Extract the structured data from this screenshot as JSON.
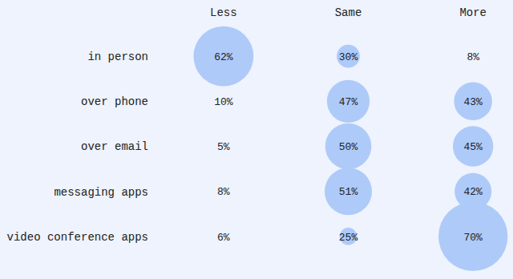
{
  "chart_data": {
    "type": "bubble",
    "categories": [
      "Less",
      "Same",
      "More"
    ],
    "rows": [
      "in person",
      "over phone",
      "over email",
      "messaging apps",
      "video conference apps"
    ],
    "values": [
      [
        62,
        30,
        8
      ],
      [
        10,
        47,
        43
      ],
      [
        5,
        50,
        45
      ],
      [
        8,
        51,
        42
      ],
      [
        6,
        25,
        70
      ]
    ],
    "value_labels": [
      [
        "62%",
        "30%",
        "8%"
      ],
      [
        "10%",
        "47%",
        "43%"
      ],
      [
        "5%",
        "50%",
        "45%"
      ],
      [
        "8%",
        "51%",
        "42%"
      ],
      [
        "6%",
        "25%",
        "70%"
      ]
    ],
    "color": "#aecaf9",
    "data_labels": true
  }
}
